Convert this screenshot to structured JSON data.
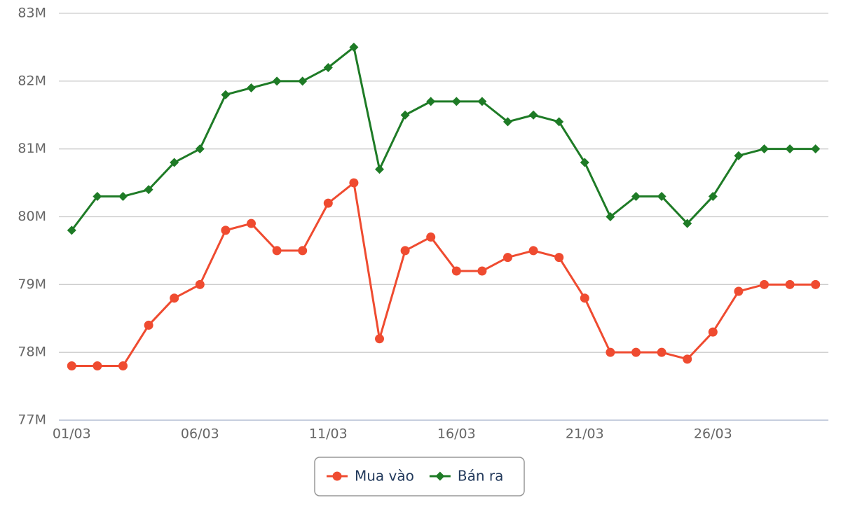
{
  "chart_data": {
    "type": "line",
    "categories": [
      "01/03",
      null,
      null,
      null,
      null,
      "06/03",
      null,
      null,
      null,
      null,
      "11/03",
      null,
      null,
      null,
      null,
      "16/03",
      null,
      null,
      null,
      null,
      "21/03",
      null,
      null,
      null,
      null,
      "26/03",
      null,
      null,
      null,
      null
    ],
    "series": [
      {
        "name": "Mua vào",
        "color": "#ef4b30",
        "marker": "circle",
        "values": [
          77800000,
          77800000,
          77800000,
          78400000,
          78800000,
          79000000,
          79800000,
          79900000,
          79500000,
          79500000,
          80200000,
          80500000,
          78200000,
          79500000,
          79700000,
          79200000,
          79200000,
          79400000,
          79500000,
          79400000,
          78800000,
          78000000,
          78000000,
          78000000,
          77900000,
          78300000,
          78900000,
          79000000,
          79000000,
          79000000
        ]
      },
      {
        "name": "Bán ra",
        "color": "#1e7b26",
        "marker": "diamond",
        "values": [
          79800000,
          80300000,
          80300000,
          80400000,
          80800000,
          81000000,
          81800000,
          81900000,
          82000000,
          82000000,
          82200000,
          82500000,
          80700000,
          81500000,
          81700000,
          81700000,
          81700000,
          81400000,
          81500000,
          81400000,
          80800000,
          80000000,
          80300000,
          80300000,
          79900000,
          80300000,
          80900000,
          81000000,
          81000000,
          81000000
        ]
      }
    ],
    "ylim": [
      77000000,
      83000000
    ],
    "yticks": [
      {
        "value": 77000000,
        "label": "77M"
      },
      {
        "value": 78000000,
        "label": "78M"
      },
      {
        "value": 79000000,
        "label": "79M"
      },
      {
        "value": 80000000,
        "label": "80M"
      },
      {
        "value": 81000000,
        "label": "81M"
      },
      {
        "value": 82000000,
        "label": "82M"
      },
      {
        "value": 83000000,
        "label": "83M"
      }
    ],
    "grid": true
  }
}
